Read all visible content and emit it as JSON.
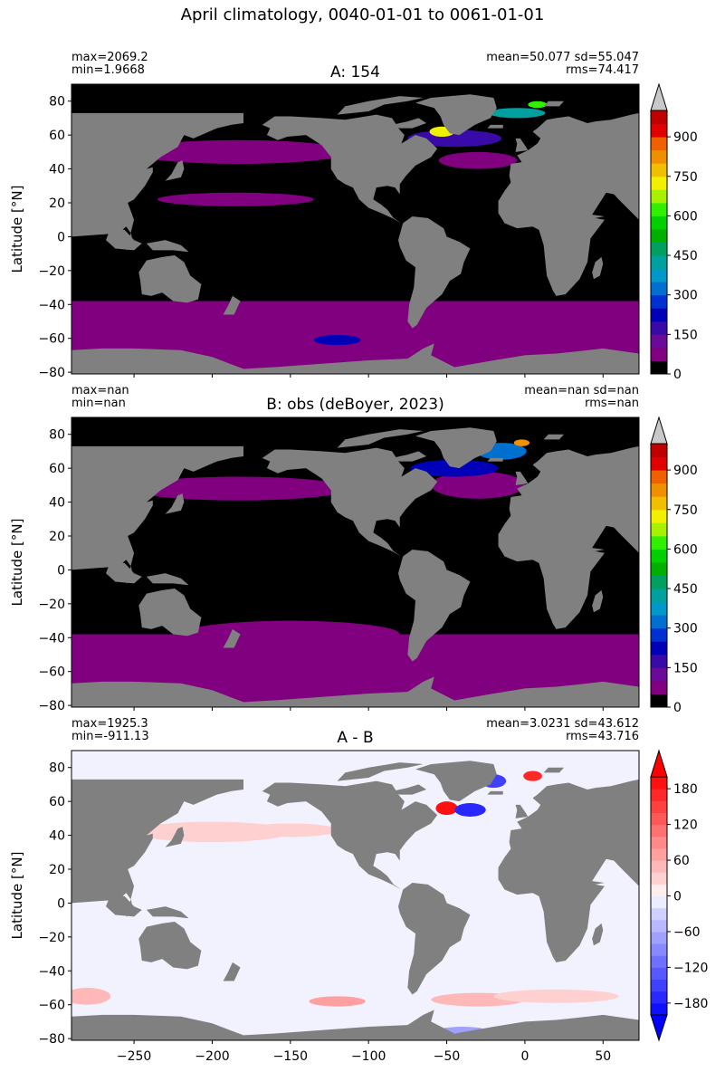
{
  "figure": {
    "suptitle": "April climatology, 0040-01-01 to 0061-01-01"
  },
  "chart_data": [
    {
      "type": "heatmap",
      "title": "A: 154",
      "ylabel": "Latitude [°N]",
      "xlabel": "",
      "stats": {
        "max": "max=2069.2",
        "min": "min=1.9668",
        "mean_sd": "mean=50.077 sd=55.047",
        "rms": "rms=74.417"
      },
      "xlim": [
        -290,
        73
      ],
      "ylim": [
        -81,
        90
      ],
      "xticks": [
        -250,
        -200,
        -150,
        -100,
        -50,
        0,
        50
      ],
      "xticklabels_visible": false,
      "yticks": [
        80,
        60,
        40,
        20,
        0,
        -20,
        -40,
        -60,
        -80
      ],
      "yticklabels": [
        "80",
        "60",
        "40",
        "20",
        "0",
        "−20",
        "−40",
        "−60",
        "−80"
      ],
      "colorbar": {
        "levels": [
          0,
          50,
          100,
          150,
          200,
          250,
          300,
          350,
          400,
          450,
          500,
          550,
          600,
          650,
          700,
          750,
          800,
          850,
          900,
          950,
          1000
        ],
        "colors": [
          "#000000",
          "#800080",
          "#6a0a9a",
          "#3a0aa8",
          "#0000b8",
          "#0030d0",
          "#0070d0",
          "#0098c8",
          "#00a0a0",
          "#00a060",
          "#00b000",
          "#00d000",
          "#30f000",
          "#a8f000",
          "#f0f000",
          "#f0c000",
          "#f09000",
          "#f06000",
          "#e00000",
          "#c00000"
        ],
        "extend_max_color": "#c8c8c8",
        "ticks": [
          0,
          150,
          300,
          450,
          600,
          750,
          900
        ],
        "ticklabels": [
          "0",
          "150",
          "300",
          "450",
          "600",
          "750",
          "900"
        ]
      },
      "land_color": "#808080",
      "ocean_base_color": "#000000"
    },
    {
      "type": "heatmap",
      "title": "B: obs (deBoyer, 2023)",
      "ylabel": "Latitude [°N]",
      "xlabel": "",
      "stats": {
        "max": "max=nan",
        "min": "min=nan",
        "mean_sd": "mean=nan sd=nan",
        "rms": "rms=nan"
      },
      "xlim": [
        -290,
        73
      ],
      "ylim": [
        -81,
        90
      ],
      "xticks": [
        -250,
        -200,
        -150,
        -100,
        -50,
        0,
        50
      ],
      "xticklabels_visible": false,
      "yticks": [
        80,
        60,
        40,
        20,
        0,
        -20,
        -40,
        -60,
        -80
      ],
      "yticklabels": [
        "80",
        "60",
        "40",
        "20",
        "0",
        "−20",
        "−40",
        "−60",
        "−80"
      ],
      "colorbar": {
        "levels": [
          0,
          50,
          100,
          150,
          200,
          250,
          300,
          350,
          400,
          450,
          500,
          550,
          600,
          650,
          700,
          750,
          800,
          850,
          900,
          950,
          1000
        ],
        "colors": [
          "#000000",
          "#800080",
          "#6a0a9a",
          "#3a0aa8",
          "#0000b8",
          "#0030d0",
          "#0070d0",
          "#0098c8",
          "#00a0a0",
          "#00a060",
          "#00b000",
          "#00d000",
          "#30f000",
          "#a8f000",
          "#f0f000",
          "#f0c000",
          "#f09000",
          "#f06000",
          "#e00000",
          "#c00000"
        ],
        "extend_max_color": "#c8c8c8",
        "ticks": [
          0,
          150,
          300,
          450,
          600,
          750,
          900
        ],
        "ticklabels": [
          "0",
          "150",
          "300",
          "450",
          "600",
          "750",
          "900"
        ]
      },
      "land_color": "#808080",
      "ocean_base_color": "#000000"
    },
    {
      "type": "heatmap",
      "title": "A - B",
      "ylabel": "Latitude [°N]",
      "xlabel": "",
      "stats": {
        "max": "max=1925.3",
        "min": "min=-911.13",
        "mean_sd": "mean=3.0231 sd=43.612",
        "rms": "rms=43.716"
      },
      "xlim": [
        -290,
        73
      ],
      "ylim": [
        -81,
        90
      ],
      "xticks": [
        -250,
        -200,
        -150,
        -100,
        -50,
        0,
        50
      ],
      "xticklabels_visible": true,
      "xticklabels": [
        "−250",
        "−200",
        "−150",
        "−100",
        "−50",
        "0",
        "50"
      ],
      "yticks": [
        80,
        60,
        40,
        20,
        0,
        -20,
        -40,
        -60,
        -80
      ],
      "yticklabels": [
        "80",
        "60",
        "40",
        "20",
        "0",
        "−20",
        "−40",
        "−60",
        "−80"
      ],
      "colorbar": {
        "levels": [
          -200,
          -180,
          -160,
          -140,
          -120,
          -100,
          -80,
          -60,
          -40,
          -20,
          0,
          20,
          40,
          60,
          80,
          100,
          120,
          140,
          160,
          180,
          200
        ],
        "colors": [
          "#1010ff",
          "#2828ff",
          "#4040ff",
          "#5858ff",
          "#7070ff",
          "#8888ff",
          "#a0a0ff",
          "#b8b8ff",
          "#d0d0ff",
          "#ececff",
          "#ffecec",
          "#ffd0d0",
          "#ffb8b8",
          "#ffa0a0",
          "#ff8888",
          "#ff7070",
          "#ff5858",
          "#ff4040",
          "#ff2828",
          "#ff1010"
        ],
        "extend_min_color": "#0000ff",
        "extend_max_color": "#ff0000",
        "ticks": [
          -180,
          -120,
          -60,
          0,
          60,
          120,
          180
        ],
        "ticklabels": [
          "−180",
          "−120",
          "−60",
          "0",
          "60",
          "120",
          "180"
        ]
      },
      "land_color": "#808080",
      "ocean_base_color": "#f2f2ff"
    }
  ]
}
